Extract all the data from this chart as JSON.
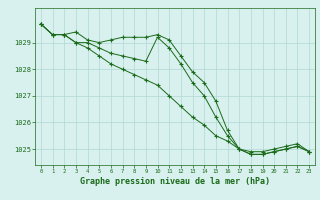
{
  "line1": [
    1029.7,
    1029.3,
    1029.3,
    1029.4,
    1029.1,
    1029.0,
    1029.1,
    1029.2,
    1029.2,
    1029.2,
    1029.3,
    1029.1,
    1028.5,
    1027.9,
    1027.5,
    1026.8,
    1025.7,
    1025.0,
    1024.9,
    1024.9,
    1025.0,
    1025.1,
    1025.2,
    1024.9
  ],
  "line2": [
    1029.7,
    1029.3,
    1029.3,
    1029.0,
    1029.0,
    1028.8,
    1028.6,
    1028.5,
    1028.4,
    1028.3,
    1029.2,
    1028.8,
    1028.2,
    1027.5,
    1027.0,
    1026.2,
    1025.5,
    1025.0,
    1024.8,
    1024.8,
    1024.9,
    1025.0,
    1025.1,
    1024.9
  ],
  "line3": [
    1029.7,
    1029.3,
    1029.3,
    1029.0,
    1028.8,
    1028.5,
    1028.2,
    1028.0,
    1027.8,
    1027.6,
    1027.4,
    1027.0,
    1026.6,
    1026.2,
    1025.9,
    1025.5,
    1025.3,
    1025.0,
    1024.8,
    1024.8,
    1024.9,
    1025.0,
    1025.1,
    1024.9
  ],
  "line_color": "#1a6b1a",
  "bg_color": "#d8f0ee",
  "grid_color": "#b0d8d4",
  "xlabel": "Graphe pression niveau de la mer (hPa)",
  "xlabel_color": "#1a6b1a",
  "tick_color": "#1a6b1a",
  "ylim_min": 1024.4,
  "ylim_max": 1030.3,
  "ytick_labels": [
    "1025",
    "1026",
    "1027",
    "1028",
    "1029"
  ],
  "ytick_values": [
    1025,
    1026,
    1027,
    1028,
    1029
  ],
  "xtick_values": [
    0,
    1,
    2,
    3,
    4,
    5,
    6,
    7,
    8,
    9,
    10,
    11,
    12,
    13,
    14,
    15,
    16,
    17,
    18,
    19,
    20,
    21,
    22,
    23
  ],
  "marker": "+"
}
